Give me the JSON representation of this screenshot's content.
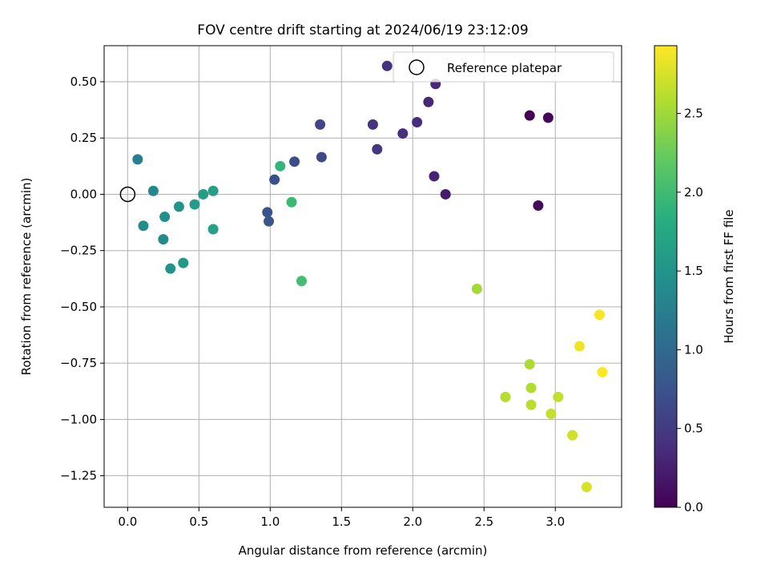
{
  "chart_data": {
    "type": "scatter",
    "title": "FOV centre drift starting at 2024/06/19 23:12:09",
    "xlabel": "Angular distance from reference (arcmin)",
    "ylabel": "Rotation from reference (arcmin)",
    "xlim": [
      -0.165,
      3.465
    ],
    "ylim": [
      -1.39,
      0.66
    ],
    "xticks": [
      0.0,
      0.5,
      1.0,
      1.5,
      2.0,
      2.5,
      3.0
    ],
    "xtick_labels": [
      "0.0",
      "0.5",
      "1.0",
      "1.5",
      "2.0",
      "2.5",
      "3.0"
    ],
    "yticks": [
      0.5,
      0.25,
      0.0,
      -0.25,
      -0.5,
      -0.75,
      -1.0,
      -1.25
    ],
    "ytick_labels": [
      "0.50",
      "0.25",
      "0.00",
      "−0.25",
      "−0.50",
      "−0.75",
      "−1.00",
      "−1.25"
    ],
    "grid": true,
    "legend": {
      "position": "top-right",
      "entries": [
        {
          "label": "Reference platepar",
          "marker": "open-circle"
        }
      ]
    },
    "reference_point": {
      "x": 0.0,
      "y": 0.0
    },
    "colorbar": {
      "label": "Hours from first FF file",
      "colormap": "viridis",
      "range": [
        0.0,
        2.93
      ],
      "ticks": [
        0.0,
        0.5,
        1.0,
        1.5,
        2.0,
        2.5
      ],
      "tick_labels": [
        "0.0",
        "0.5",
        "1.0",
        "1.5",
        "2.0",
        "2.5"
      ]
    },
    "points": [
      {
        "x": 2.82,
        "y": 0.35,
        "h": 0.02
      },
      {
        "x": 2.95,
        "y": 0.34,
        "h": 0.05
      },
      {
        "x": 2.88,
        "y": -0.05,
        "h": 0.08
      },
      {
        "x": 2.23,
        "y": 0.0,
        "h": 0.22
      },
      {
        "x": 2.15,
        "y": 0.08,
        "h": 0.28
      },
      {
        "x": 2.11,
        "y": 0.41,
        "h": 0.32
      },
      {
        "x": 2.16,
        "y": 0.49,
        "h": 0.35
      },
      {
        "x": 2.03,
        "y": 0.32,
        "h": 0.38
      },
      {
        "x": 1.93,
        "y": 0.27,
        "h": 0.4
      },
      {
        "x": 1.82,
        "y": 0.57,
        "h": 0.42
      },
      {
        "x": 1.72,
        "y": 0.31,
        "h": 0.44
      },
      {
        "x": 1.75,
        "y": 0.2,
        "h": 0.46
      },
      {
        "x": 1.35,
        "y": 0.31,
        "h": 0.62
      },
      {
        "x": 1.36,
        "y": 0.165,
        "h": 0.64
      },
      {
        "x": 1.17,
        "y": 0.145,
        "h": 0.68
      },
      {
        "x": 1.03,
        "y": 0.065,
        "h": 0.72
      },
      {
        "x": 0.98,
        "y": -0.08,
        "h": 0.76
      },
      {
        "x": 0.99,
        "y": -0.12,
        "h": 0.8
      },
      {
        "x": 0.07,
        "y": 0.155,
        "h": 1.25
      },
      {
        "x": 0.18,
        "y": 0.015,
        "h": 1.35
      },
      {
        "x": 0.11,
        "y": -0.14,
        "h": 1.42
      },
      {
        "x": 0.26,
        "y": -0.1,
        "h": 1.45
      },
      {
        "x": 0.25,
        "y": -0.2,
        "h": 1.4
      },
      {
        "x": 0.3,
        "y": -0.33,
        "h": 1.48
      },
      {
        "x": 0.36,
        "y": -0.055,
        "h": 1.52
      },
      {
        "x": 0.39,
        "y": -0.305,
        "h": 1.55
      },
      {
        "x": 0.47,
        "y": -0.045,
        "h": 1.6
      },
      {
        "x": 0.53,
        "y": 0.0,
        "h": 1.62
      },
      {
        "x": 0.6,
        "y": 0.015,
        "h": 1.65
      },
      {
        "x": 0.6,
        "y": -0.155,
        "h": 1.68
      },
      {
        "x": 1.07,
        "y": 0.125,
        "h": 1.92
      },
      {
        "x": 1.15,
        "y": -0.035,
        "h": 1.97
      },
      {
        "x": 1.22,
        "y": -0.385,
        "h": 2.02
      },
      {
        "x": 2.45,
        "y": -0.42,
        "h": 2.52
      },
      {
        "x": 2.82,
        "y": -0.755,
        "h": 2.56
      },
      {
        "x": 2.83,
        "y": -0.86,
        "h": 2.58
      },
      {
        "x": 2.65,
        "y": -0.9,
        "h": 2.6
      },
      {
        "x": 2.83,
        "y": -0.935,
        "h": 2.63
      },
      {
        "x": 3.02,
        "y": -0.9,
        "h": 2.66
      },
      {
        "x": 2.97,
        "y": -0.975,
        "h": 2.68
      },
      {
        "x": 3.12,
        "y": -1.07,
        "h": 2.72
      },
      {
        "x": 3.22,
        "y": -1.3,
        "h": 2.75
      },
      {
        "x": 3.17,
        "y": -0.675,
        "h": 2.86
      },
      {
        "x": 3.31,
        "y": -0.535,
        "h": 2.9
      },
      {
        "x": 3.33,
        "y": -0.79,
        "h": 2.93
      }
    ]
  }
}
